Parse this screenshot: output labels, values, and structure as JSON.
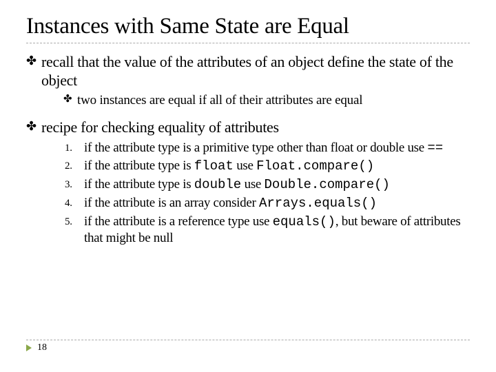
{
  "title": "Instances with Same State are Equal",
  "bullets": [
    {
      "text": "recall that the value of the attributes of an object define the state of the object",
      "sub": [
        {
          "text": "two instances are equal if all of their attributes are equal"
        }
      ]
    },
    {
      "text": "recipe for checking equality of attributes",
      "numbered": [
        {
          "n": "1.",
          "pre": "if the attribute type is a primitive type other than float or double use ",
          "code": "==",
          "post": ""
        },
        {
          "n": "2.",
          "pre": "if the attribute type is ",
          "code": "float",
          "mid": " use ",
          "code2": "Float.compare()",
          "post": ""
        },
        {
          "n": "3.",
          "pre": "if the attribute type is ",
          "code": "double",
          "mid": " use ",
          "code2": "Double.compare()",
          "post": ""
        },
        {
          "n": "4.",
          "pre": "if the attribute is an array consider ",
          "code": "Arrays.equals()",
          "post": ""
        },
        {
          "n": "5.",
          "pre": "if the attribute is a reference type use ",
          "code": "equals()",
          "post": ", but beware of attributes that might be null"
        }
      ]
    }
  ],
  "bullet_glyph": "✤",
  "page_number": "18",
  "colors": {
    "text": "#000000",
    "background": "#ffffff",
    "divider": "#aaaaaa",
    "accent_triangle": "#8aa84a"
  },
  "typography": {
    "title_size_pt": 33,
    "body_size_pt": 22,
    "sub_size_pt": 19,
    "num_size_pt": 19,
    "mono_family": "Courier New"
  }
}
